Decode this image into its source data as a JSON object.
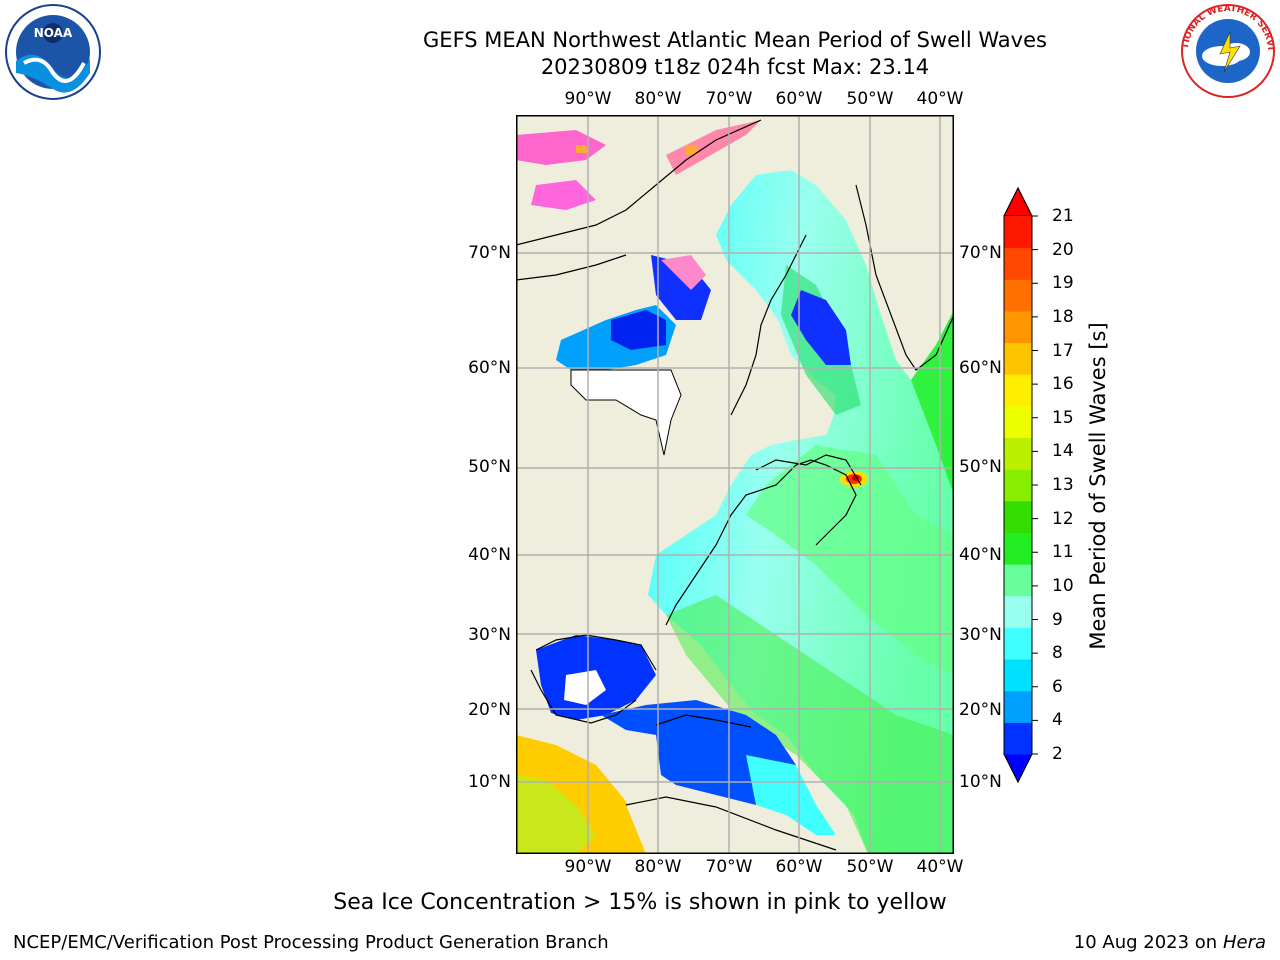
{
  "title_line1": "GEFS MEAN Northwest Atlantic Mean Period of Swell Waves",
  "title_line2": "20230809 t18z 024h fcst   Max: 23.14",
  "map": {
    "lon_labels": [
      "90°W",
      "80°W",
      "70°W",
      "60°W",
      "50°W",
      "40°W"
    ],
    "lat_labels": [
      "70°N",
      "60°N",
      "50°N",
      "40°N",
      "30°N",
      "20°N",
      "10°N"
    ]
  },
  "colorbar": {
    "label": "Mean Period of Swell Waves [s]",
    "ticks": [
      "2",
      "4",
      "6",
      "8",
      "9",
      "10",
      "11",
      "12",
      "13",
      "14",
      "15",
      "16",
      "17",
      "18",
      "19",
      "20",
      "21"
    ],
    "colors": [
      "#0033ff",
      "#00a0ff",
      "#00e0ff",
      "#40ffff",
      "#99ffee",
      "#66ff99",
      "#22ee22",
      "#33dd00",
      "#88ee00",
      "#bbf000",
      "#eeff00",
      "#ffee00",
      "#ffc400",
      "#ff9500",
      "#ff7000",
      "#ff4800",
      "#ff1800"
    ],
    "under_color": "#0000ff",
    "over_color": "#ff0000"
  },
  "note": "Sea Ice Concentration > 15% is shown in pink to yellow",
  "credit": "NCEP/EMC/Verification Post Processing Product Generation Branch",
  "date": "10 Aug 2023 on",
  "machine": "Hera",
  "logos": {
    "left": "NOAA",
    "right": "NATIONAL WEATHER SERVICE"
  }
}
